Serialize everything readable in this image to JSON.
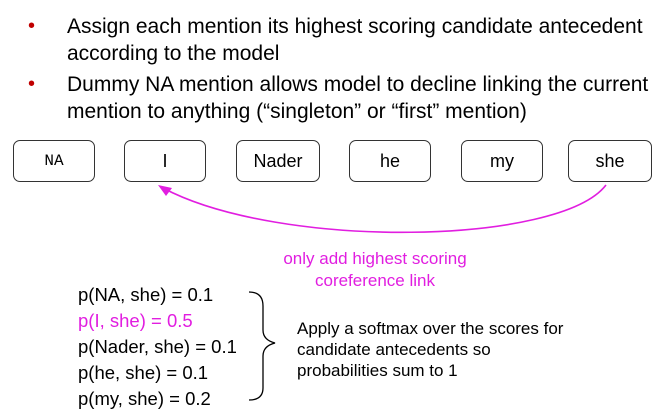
{
  "bullets": [
    {
      "marker": "•",
      "text": "Assign each mention its highest scoring candidate antecedent according to the model"
    },
    {
      "marker": "•",
      "text": "Dummy NA mention allows model to decline linking the current mention to anything (“singleton” or “first” mention)"
    }
  ],
  "mentions": [
    "NA",
    "I",
    "Nader",
    "he",
    "my",
    "she"
  ],
  "link_annotation": {
    "line1": "only add highest scoring",
    "line2": "coreference link"
  },
  "probabilities": [
    {
      "text": "p(NA, she) = 0.1",
      "highlight": false
    },
    {
      "text": "p(I, she) = 0.5",
      "highlight": true
    },
    {
      "text": "p(Nader, she) = 0.1",
      "highlight": false
    },
    {
      "text": "p(he, she) = 0.1",
      "highlight": false
    },
    {
      "text": "p(my, she) = 0.2",
      "highlight": false
    }
  ],
  "softmax_note": {
    "line1": "Apply a softmax over the scores for",
    "line2": "candidate antecedents so",
    "line3": "probabilities sum to 1"
  },
  "colors": {
    "accent": "#e11ee0",
    "bullet": "#c00000"
  }
}
